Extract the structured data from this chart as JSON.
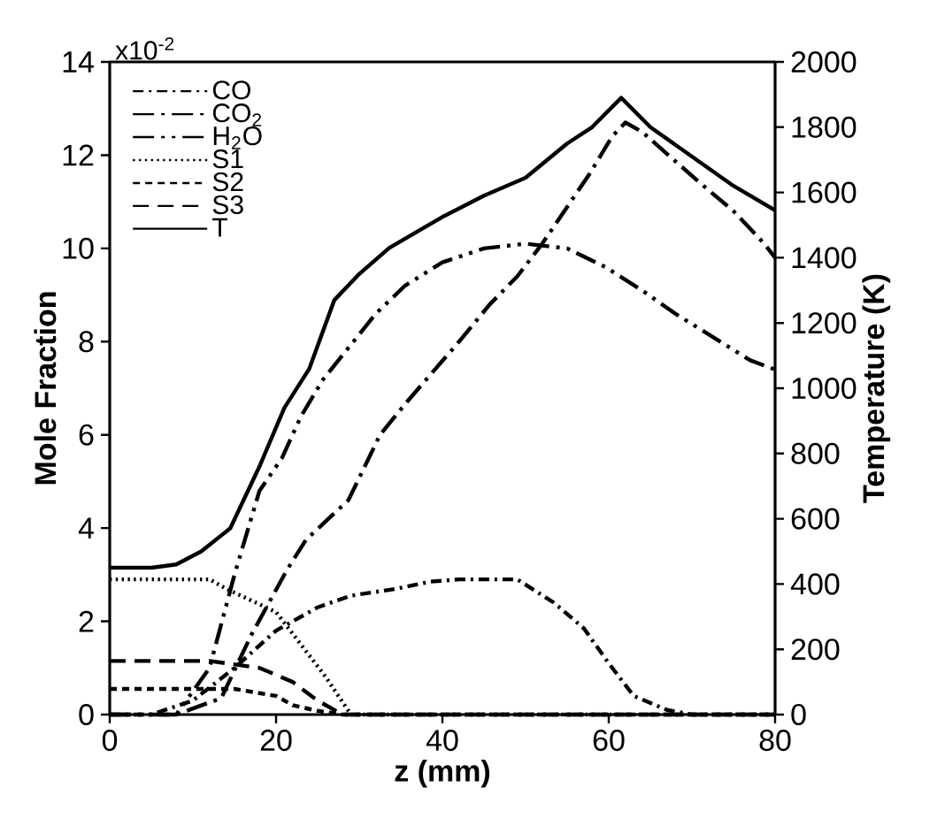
{
  "chart_data": {
    "type": "line",
    "xlabel": "z (mm)",
    "ylabel": "Mole Fraction",
    "y2label": "Temperature (K)",
    "xlim": [
      0,
      80
    ],
    "xticks": [
      0,
      20,
      40,
      60,
      80
    ],
    "ylim": [
      0,
      14
    ],
    "yticks": [
      0,
      2,
      4,
      6,
      8,
      10,
      12,
      14
    ],
    "y2lim": [
      0,
      2000
    ],
    "y2ticks": [
      0,
      200,
      400,
      600,
      800,
      1000,
      1200,
      1400,
      1600,
      1800,
      2000
    ],
    "legend": "top left",
    "grid": false,
    "marker": "none",
    "annotations": [
      "x10$^{-2}$"
    ],
    "series": [
      {
        "name": "CO",
        "color": "#000000",
        "line_style": "dashdot",
        "x": [
          0,
          5,
          10,
          15,
          20,
          25,
          29,
          34.5,
          38.5,
          42,
          49,
          53.4,
          57,
          60,
          63,
          67,
          70,
          80
        ],
        "values": [
          0,
          0,
          0.3,
          1.0,
          1.8,
          2.3,
          2.55,
          2.7,
          2.85,
          2.9,
          2.9,
          2.4,
          1.85,
          1.1,
          0.4,
          0.1,
          0,
          0
        ]
      },
      {
        "name": "CO$_{2}$",
        "color": "#000000",
        "line_style": "longdashdot",
        "x": [
          0,
          8,
          13.4,
          17,
          21.3,
          23.6,
          28.7,
          32.5,
          35.7,
          42,
          45.7,
          49,
          52,
          57.7,
          60.4,
          62,
          64,
          71,
          75,
          78.7,
          80
        ],
        "values": [
          0,
          0,
          0.35,
          1.7,
          3.1,
          3.75,
          4.6,
          6.0,
          6.7,
          8.0,
          8.8,
          9.4,
          10.1,
          11.6,
          12.4,
          12.7,
          12.5,
          11.4,
          10.8,
          10.1,
          9.8
        ]
      },
      {
        "name": "H$_{2}$O",
        "color": "#000000",
        "line_style": "longdashdotdot",
        "x": [
          0,
          8,
          12,
          15,
          18,
          20.7,
          23,
          25.7,
          32,
          35.5,
          40,
          45,
          50,
          55,
          59.6,
          64,
          68,
          77,
          80
        ],
        "values": [
          0,
          0,
          1.0,
          3.0,
          4.8,
          5.5,
          6.4,
          7.2,
          8.6,
          9.2,
          9.7,
          10.0,
          10.1,
          10.0,
          9.6,
          9.1,
          8.6,
          7.6,
          7.4
        ]
      },
      {
        "name": "S1",
        "color": "#000000",
        "line_style": "dotted",
        "x": [
          0,
          12,
          14,
          20,
          23,
          26,
          29,
          80
        ],
        "values": [
          2.9,
          2.9,
          2.7,
          2.2,
          1.5,
          0.8,
          0,
          0
        ]
      },
      {
        "name": "S2",
        "color": "#000000",
        "line_style": "dashed",
        "x": [
          0,
          15,
          20,
          22,
          25,
          28,
          80
        ],
        "values": [
          0.55,
          0.55,
          0.4,
          0.2,
          0.08,
          0,
          0
        ]
      },
      {
        "name": "S3",
        "color": "#000000",
        "line_style": "longdashed",
        "x": [
          0,
          12,
          18,
          22,
          25,
          28,
          80
        ],
        "values": [
          1.15,
          1.15,
          1.0,
          0.7,
          0.3,
          0,
          0
        ]
      },
      {
        "name": "T",
        "color": "#000000",
        "line_style": "solid",
        "axis": "y2",
        "x": [
          0,
          5,
          8,
          11,
          14.5,
          18,
          21,
          24,
          27,
          30,
          33.6,
          40,
          45,
          50,
          55,
          58,
          61.5,
          65,
          70,
          75,
          80
        ],
        "values": [
          450,
          450,
          460,
          500,
          571,
          760,
          940,
          1060,
          1270,
          1350,
          1430,
          1525,
          1590,
          1645,
          1750,
          1800,
          1890,
          1800,
          1710,
          1620,
          1545
        ]
      }
    ]
  }
}
